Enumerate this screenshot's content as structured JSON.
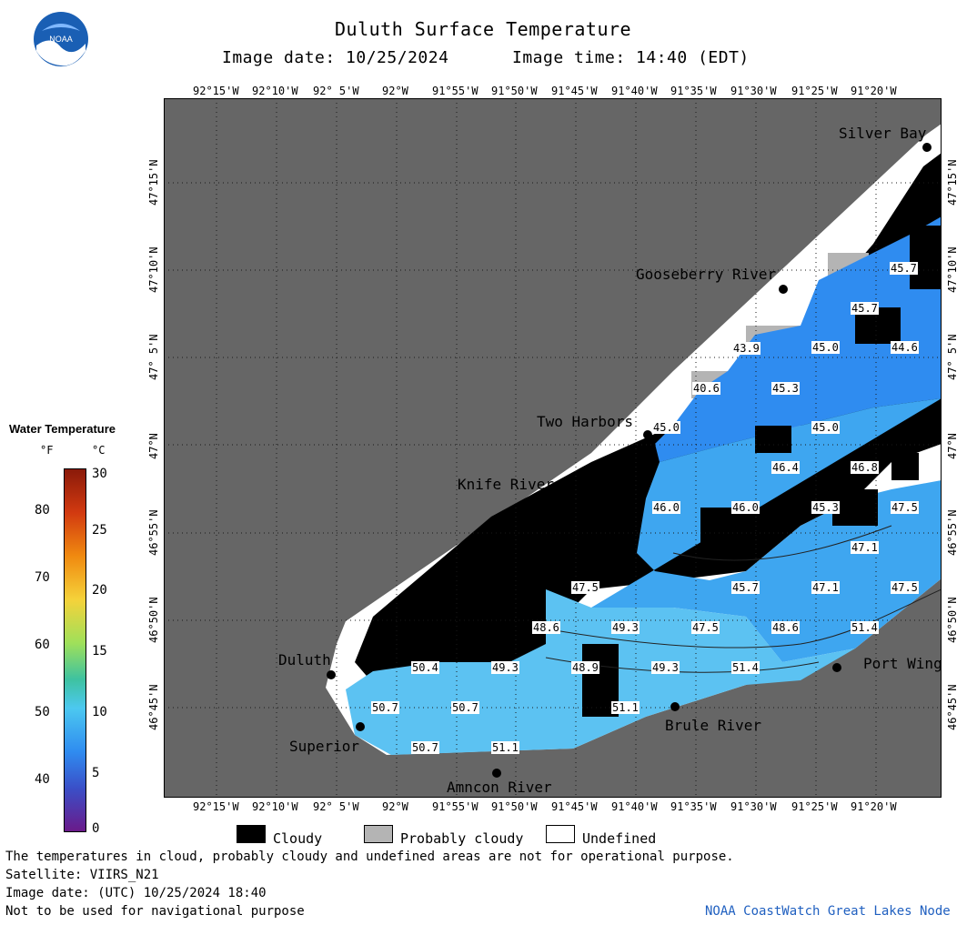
{
  "header": {
    "title": "Duluth Surface Temperature",
    "image_date": "Image date: 10/25/2024",
    "image_time": "Image time: 14:40 (EDT)"
  },
  "logo": {
    "text": "NOAA"
  },
  "axes": {
    "lon_ticks": [
      "92°15'W",
      "92°10'W",
      "92° 5'W",
      "92°W",
      "91°55'W",
      "91°50'W",
      "91°45'W",
      "91°40'W",
      "91°35'W",
      "91°30'W",
      "91°25'W",
      "91°20'W"
    ],
    "lat_ticks": [
      "47°15'N",
      "47°10'N",
      "47° 5'N",
      "47°N",
      "46°55'N",
      "46°50'N",
      "46°45'N"
    ]
  },
  "places": [
    {
      "name": "Silver Bay"
    },
    {
      "name": "Gooseberry River"
    },
    {
      "name": "Two Harbors"
    },
    {
      "name": "Knife River"
    },
    {
      "name": "Duluth"
    },
    {
      "name": "Superior"
    },
    {
      "name": "Amncon River"
    },
    {
      "name": "Brule River"
    },
    {
      "name": "Port Wing"
    }
  ],
  "temperature_labels": [
    "45.7",
    "45.7",
    "45.0",
    "44.6",
    "43.9",
    "40.6",
    "45.3",
    "45.0",
    "45.0",
    "46.4",
    "46.8",
    "46.0",
    "46.0",
    "45.3",
    "47.5",
    "47.1",
    "47.5",
    "45.7",
    "47.1",
    "47.5",
    "48.6",
    "49.3",
    "47.5",
    "48.6",
    "51.4",
    "50.4",
    "49.3",
    "48.9",
    "49.3",
    "51.4",
    "50.7",
    "50.7",
    "51.1",
    "50.7",
    "51.1"
  ],
  "colorbar": {
    "title": "Water Temperature",
    "unit_f": "°F",
    "unit_c": "°C",
    "f_ticks": [
      "80",
      "70",
      "60",
      "50",
      "40"
    ],
    "c_ticks": [
      "30",
      "25",
      "20",
      "15",
      "10",
      "5",
      "0"
    ]
  },
  "legend": {
    "cloudy": "Cloudy",
    "probably_cloudy": "Probably cloudy",
    "undefined": "Undefined",
    "colors": {
      "cloudy": "#000000",
      "probably_cloudy": "#b4b4b4",
      "undefined": "#ffffff",
      "land": "#666666"
    }
  },
  "footer": {
    "line1": "The temperatures in cloud, probably cloudy and undefined areas are not for operational purpose.",
    "line2": "Satellite: VIIRS_N21",
    "line3": "Image date: (UTC) 10/25/2024  18:40",
    "line4": "Not to be used for navigational purpose",
    "credit": "NOAA CoastWatch Great Lakes Node"
  }
}
